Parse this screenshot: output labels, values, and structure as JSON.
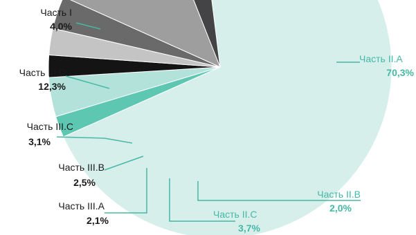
{
  "chart_data": {
    "type": "pie",
    "title": "",
    "categories": [
      "Часть II.A",
      "Часть II.B",
      "Часть II.C",
      "Часть III.A",
      "Часть III.B",
      "Часть III.C",
      "Часть III.D",
      "Часть I"
    ],
    "values": [
      70.3,
      2.0,
      3.7,
      2.1,
      2.5,
      3.1,
      12.3,
      4.0
    ],
    "value_labels": [
      "70,3%",
      "2,0%",
      "3,7%",
      "2,1%",
      "2,5%",
      "3,1%",
      "12,3%",
      "4,0%"
    ],
    "colors": [
      "#d7efeb",
      "#5ec7b2",
      "#b2e2da",
      "#141414",
      "#c4c4c4",
      "#6a6a6a",
      "#9e9e9f",
      "#444446"
    ],
    "label_colors": [
      "#45b8a6",
      "#45b8a6",
      "#45b8a6",
      "#1a1a1a",
      "#1a1a1a",
      "#1a1a1a",
      "#1a1a1a",
      "#1a1a1a"
    ],
    "leader_color": "#45b8a6"
  }
}
